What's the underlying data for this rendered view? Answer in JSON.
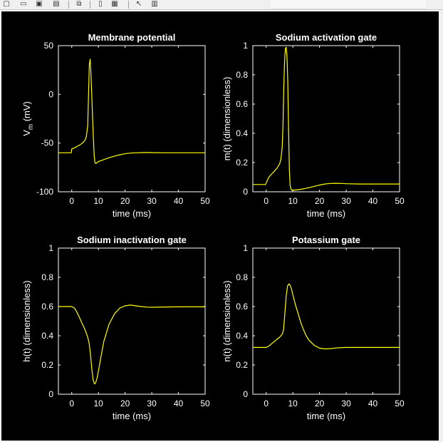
{
  "toolbar": {
    "buttons": [
      {
        "name": "new-figure-icon",
        "glyph": "▢"
      },
      {
        "name": "open-file-icon",
        "glyph": "▭"
      },
      {
        "name": "save-icon",
        "glyph": "▣"
      },
      {
        "name": "print-icon",
        "glyph": "▤"
      },
      {
        "name": "link-plot-icon",
        "glyph": "⧉"
      },
      {
        "name": "insert-colorbar-icon",
        "glyph": "▯"
      },
      {
        "name": "insert-legend-icon",
        "glyph": "▦"
      },
      {
        "name": "edit-plot-pointer-icon",
        "glyph": "↖"
      },
      {
        "name": "property-inspector-icon",
        "glyph": "▥"
      }
    ]
  },
  "colors": {
    "background": "#000000",
    "axes": "#ffffff",
    "line": "#ffff00",
    "text": "#ffffff"
  },
  "chart_data": [
    {
      "type": "line",
      "title": "Membrane potential",
      "xlabel": "time (ms)",
      "ylabel": "V",
      "ylabel_sub": "m",
      "ylabel_unit": " (mV)",
      "xlim": [
        -5,
        50
      ],
      "ylim": [
        -100,
        50
      ],
      "xticks": [
        0,
        10,
        20,
        30,
        40,
        50
      ],
      "yticks": [
        -100,
        -50,
        0,
        50
      ],
      "series": [
        {
          "x": [
            -5,
            -0.2,
            0,
            1,
            2,
            3,
            4,
            5,
            5.5,
            6,
            6.3,
            6.6,
            6.9,
            7.2,
            7.5,
            7.8,
            8.1,
            8.4,
            8.7,
            9,
            9.5,
            10,
            12,
            14,
            16,
            18,
            20,
            22,
            24,
            26,
            28,
            30,
            35,
            40,
            45,
            50
          ],
          "y": [
            -60,
            -60,
            -56,
            -55,
            -53.5,
            -52,
            -50,
            -47,
            -43,
            -32,
            0,
            30,
            36,
            22,
            0,
            -22,
            -45,
            -62,
            -70,
            -71,
            -70,
            -69,
            -67,
            -65,
            -63.5,
            -62,
            -61,
            -60.3,
            -60,
            -59.8,
            -59.7,
            -59.8,
            -60,
            -60,
            -60,
            -60
          ]
        }
      ]
    },
    {
      "type": "line",
      "title": "Sodium activation gate",
      "xlabel": "time (ms)",
      "ylabel": "m(t) (dimensionless)",
      "xlim": [
        -5,
        50
      ],
      "ylim": [
        0,
        1
      ],
      "xticks": [
        0,
        10,
        20,
        30,
        40,
        50
      ],
      "yticks": [
        0,
        0.2,
        0.4,
        0.6,
        0.8,
        1
      ],
      "series": [
        {
          "x": [
            -5,
            -0.2,
            0,
            1,
            2,
            3,
            4,
            5,
            5.5,
            6,
            6.3,
            6.6,
            6.9,
            7.2,
            7.5,
            7.8,
            8.1,
            8.4,
            8.7,
            9,
            9.3,
            9.6,
            10,
            11,
            12,
            14,
            16,
            18,
            20,
            22,
            24,
            26,
            28,
            30,
            35,
            40,
            45,
            50
          ],
          "y": [
            0.05,
            0.05,
            0.06,
            0.1,
            0.12,
            0.14,
            0.16,
            0.19,
            0.22,
            0.3,
            0.45,
            0.7,
            0.9,
            0.98,
            0.99,
            0.93,
            0.75,
            0.42,
            0.15,
            0.04,
            0.02,
            0.01,
            0.01,
            0.012,
            0.014,
            0.02,
            0.028,
            0.037,
            0.046,
            0.053,
            0.057,
            0.058,
            0.057,
            0.055,
            0.053,
            0.053,
            0.053,
            0.053
          ]
        }
      ]
    },
    {
      "type": "line",
      "title": "Sodium inactivation gate",
      "xlabel": "time (ms)",
      "ylabel": "h(t) (dimensionless)",
      "xlim": [
        -5,
        50
      ],
      "ylim": [
        0,
        1
      ],
      "xticks": [
        0,
        10,
        20,
        30,
        40,
        50
      ],
      "yticks": [
        0,
        0.2,
        0.4,
        0.6,
        0.8,
        1
      ],
      "series": [
        {
          "x": [
            -5,
            0,
            1,
            2,
            3,
            4,
            5,
            6,
            6.5,
            7,
            7.5,
            8,
            8.5,
            9,
            9.5,
            10,
            11,
            12,
            14,
            16,
            18,
            20,
            22,
            24,
            26,
            28,
            30,
            35,
            40,
            45,
            50
          ],
          "y": [
            0.6,
            0.6,
            0.59,
            0.56,
            0.52,
            0.48,
            0.44,
            0.39,
            0.35,
            0.28,
            0.18,
            0.1,
            0.07,
            0.08,
            0.11,
            0.16,
            0.26,
            0.36,
            0.48,
            0.55,
            0.59,
            0.605,
            0.61,
            0.605,
            0.6,
            0.596,
            0.595,
            0.597,
            0.598,
            0.598,
            0.598
          ]
        }
      ]
    },
    {
      "type": "line",
      "title": "Potassium gate",
      "xlabel": "time (ms)",
      "ylabel": "n(t) (dimensionless)",
      "xlim": [
        -5,
        50
      ],
      "ylim": [
        0,
        1
      ],
      "xticks": [
        0,
        10,
        20,
        30,
        40,
        50
      ],
      "yticks": [
        0,
        0.2,
        0.4,
        0.6,
        0.8,
        1
      ],
      "series": [
        {
          "x": [
            -5,
            0,
            1,
            2,
            3,
            4,
            5,
            6,
            6.5,
            7,
            7.5,
            8,
            8.5,
            9,
            9.5,
            10,
            11,
            12,
            13,
            14,
            15,
            16,
            18,
            20,
            22,
            24,
            26,
            28,
            30,
            35,
            40,
            45,
            50
          ],
          "y": [
            0.32,
            0.32,
            0.33,
            0.345,
            0.36,
            0.375,
            0.39,
            0.41,
            0.44,
            0.55,
            0.67,
            0.74,
            0.755,
            0.745,
            0.72,
            0.68,
            0.61,
            0.55,
            0.49,
            0.44,
            0.4,
            0.37,
            0.335,
            0.315,
            0.31,
            0.312,
            0.316,
            0.319,
            0.32,
            0.32,
            0.32,
            0.32,
            0.32
          ]
        }
      ]
    }
  ]
}
